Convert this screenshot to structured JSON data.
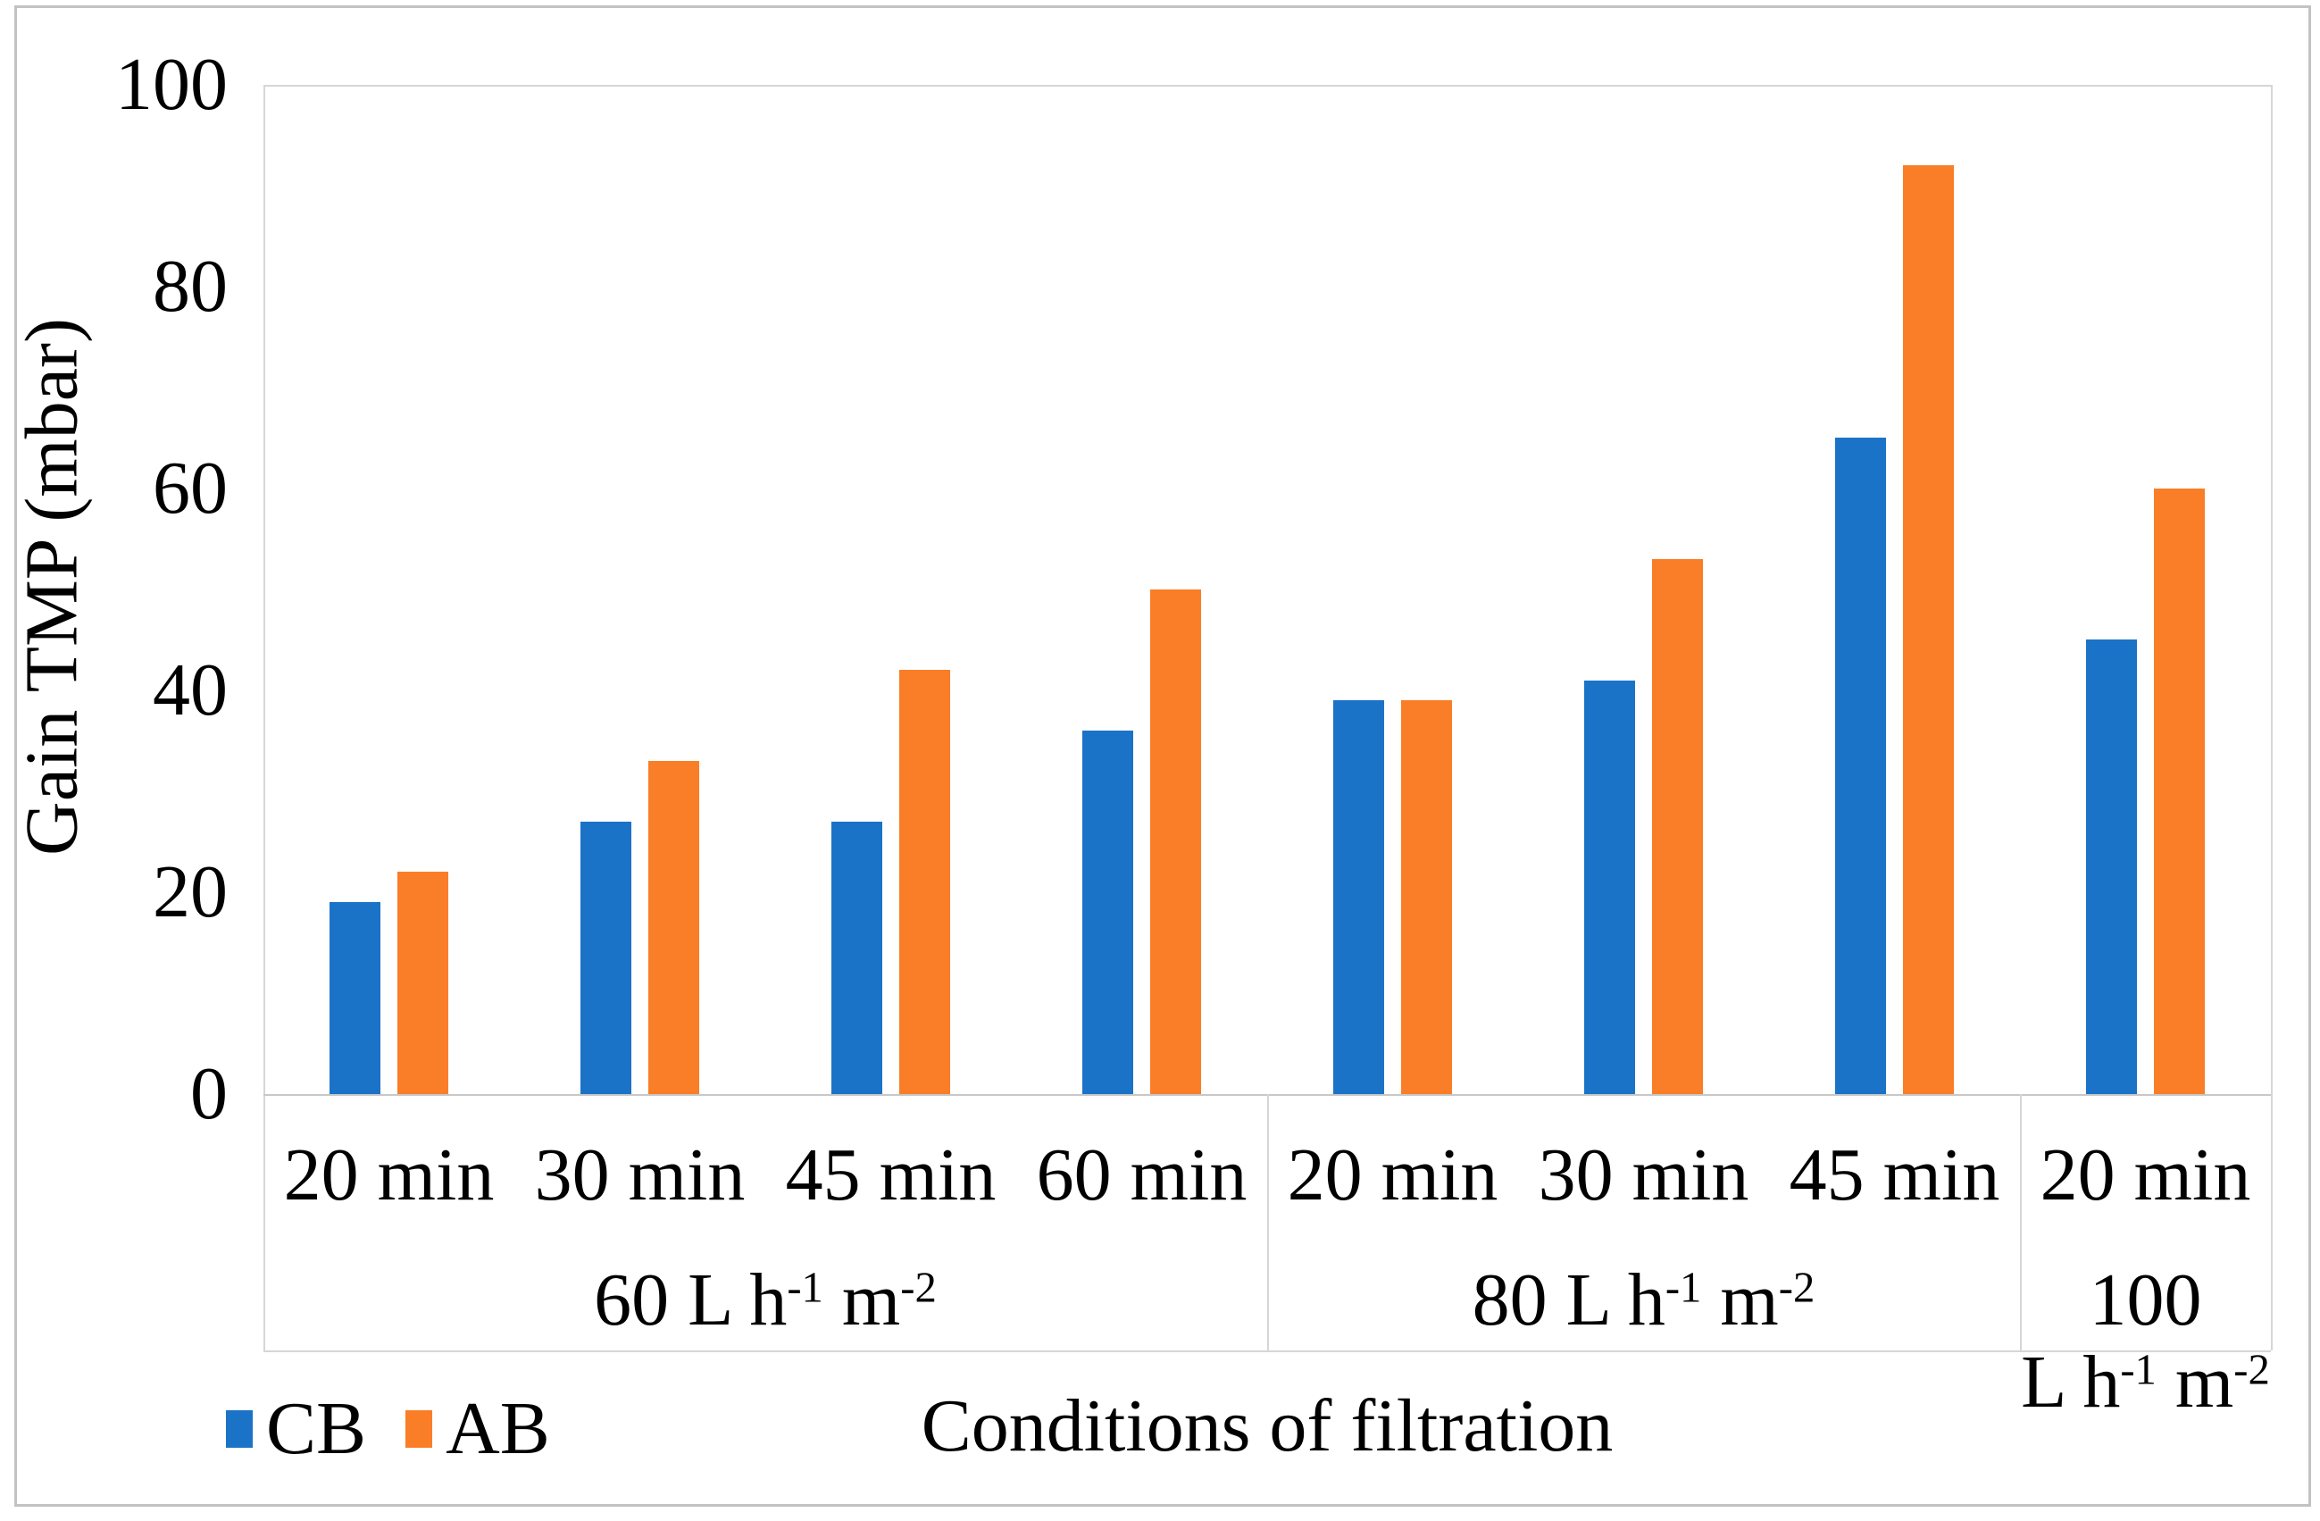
{
  "figure": {
    "background": "#ffffff",
    "border_color": "#c3c3c3",
    "axis_line_color": "#d6d6d6"
  },
  "chart_data": {
    "type": "bar",
    "title": "",
    "xlabel": "Conditions of filtration",
    "ylabel": "Gain TMP (mbar)",
    "ylim": [
      0,
      100
    ],
    "yticks": [
      0,
      20,
      40,
      60,
      80,
      100
    ],
    "grid": false,
    "legend_position": "bottom-left",
    "categories": [
      "20 min",
      "30 min",
      "45 min",
      "60 min",
      "20 min",
      "30 min",
      "45 min",
      "20 min"
    ],
    "groups": [
      {
        "span": 4,
        "label_text": "60 L h⁻¹ m⁻²",
        "lines": [
          [
            "60 L h",
            "^-1",
            " m",
            "^-2"
          ]
        ]
      },
      {
        "span": 3,
        "label_text": "80 L h⁻¹ m⁻²",
        "lines": [
          [
            "80 L h",
            "^-1",
            " m",
            "^-2"
          ]
        ]
      },
      {
        "span": 1,
        "label_text": "100 L h⁻¹ m⁻²",
        "lines": [
          [
            "100"
          ],
          [
            "L h",
            "^-1",
            " m",
            "^-2"
          ]
        ]
      }
    ],
    "series": [
      {
        "name": "CB",
        "color": "#1B73C8",
        "values": [
          19,
          27,
          27,
          36,
          39,
          41,
          65,
          45
        ]
      },
      {
        "name": "AB",
        "color": "#F97E27",
        "values": [
          22,
          33,
          42,
          50,
          39,
          53,
          92,
          60
        ]
      }
    ]
  }
}
